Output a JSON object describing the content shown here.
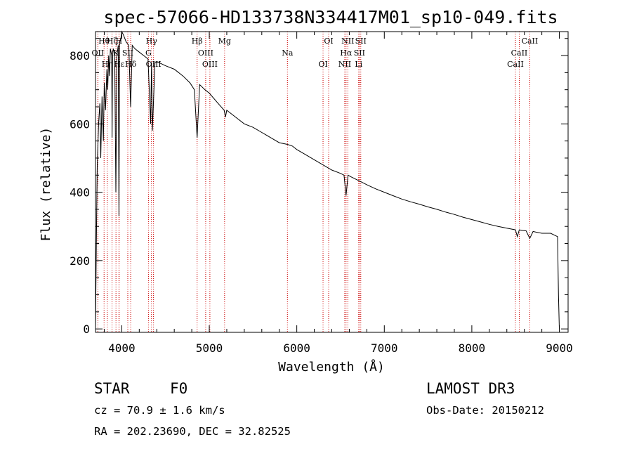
{
  "chart_data": {
    "type": "line",
    "title": "spec-57066-HD133738N334417M01_sp10-049.fits",
    "xlabel": "Wavelength (Å)",
    "ylabel": "Flux (relative)",
    "xlim": [
      3700,
      9100
    ],
    "ylim": [
      -10,
      870
    ],
    "xticks": [
      4000,
      5000,
      6000,
      7000,
      8000,
      9000
    ],
    "yticks": [
      0,
      200,
      400,
      600,
      800
    ],
    "series": [
      {
        "name": "spectrum",
        "x": [
          3700,
          3710,
          3720,
          3735,
          3750,
          3760,
          3775,
          3790,
          3800,
          3815,
          3830,
          3840,
          3850,
          3860,
          3870,
          3885,
          3889,
          3895,
          3905,
          3920,
          3933,
          3945,
          3960,
          3968,
          3975,
          3990,
          4000,
          4020,
          4050,
          4080,
          4101,
          4120,
          4150,
          4200,
          4250,
          4300,
          4330,
          4340,
          4350,
          4380,
          4420,
          4500,
          4600,
          4700,
          4780,
          4830,
          4861,
          4890,
          4950,
          5000,
          5100,
          5170,
          5185,
          5200,
          5300,
          5400,
          5500,
          5600,
          5700,
          5800,
          5893,
          5950,
          6000,
          6100,
          6200,
          6300,
          6400,
          6500,
          6540,
          6563,
          6585,
          6620,
          6700,
          6800,
          6900,
          7000,
          7100,
          7200,
          7300,
          7400,
          7500,
          7600,
          7700,
          7800,
          7900,
          8000,
          8100,
          8200,
          8300,
          8400,
          8498,
          8520,
          8542,
          8580,
          8620,
          8662,
          8700,
          8800,
          8900,
          8980,
          8990,
          9000
        ],
        "values": [
          0,
          250,
          480,
          600,
          660,
          500,
          680,
          550,
          720,
          640,
          760,
          700,
          800,
          740,
          820,
          800,
          560,
          810,
          820,
          790,
          400,
          800,
          830,
          330,
          840,
          850,
          870,
          860,
          840,
          830,
          650,
          830,
          820,
          810,
          800,
          790,
          600,
          780,
          580,
          780,
          780,
          770,
          760,
          740,
          720,
          700,
          560,
          715,
          700,
          690,
          660,
          640,
          620,
          640,
          620,
          600,
          590,
          575,
          560,
          545,
          540,
          535,
          525,
          510,
          495,
          480,
          465,
          455,
          450,
          390,
          450,
          445,
          435,
          422,
          410,
          400,
          390,
          380,
          372,
          365,
          357,
          350,
          342,
          335,
          327,
          320,
          313,
          306,
          300,
          295,
          290,
          270,
          290,
          288,
          287,
          265,
          285,
          280,
          280,
          270,
          100,
          0
        ]
      }
    ],
    "spectral_lines": [
      {
        "label": "Hθ",
        "wavelength": 3798
      },
      {
        "label": "OII",
        "wavelength": 3727
      },
      {
        "label": "Hη",
        "wavelength": 3835
      },
      {
        "label": "Hζ",
        "wavelength": 3889
      },
      {
        "label": "K",
        "wavelength": 3934
      },
      {
        "label": "Hε",
        "wavelength": 3970
      },
      {
        "label": "H",
        "wavelength": 3968
      },
      {
        "label": "SII",
        "wavelength": 4069
      },
      {
        "label": "Hδ",
        "wavelength": 4102
      },
      {
        "label": "Hγ",
        "wavelength": 4340
      },
      {
        "label": "G",
        "wavelength": 4305
      },
      {
        "label": "OIII",
        "wavelength": 4363
      },
      {
        "label": "Hβ",
        "wavelength": 4861
      },
      {
        "label": "OIII",
        "wavelength": 4959
      },
      {
        "label": "OIII",
        "wavelength": 5007
      },
      {
        "label": "Mg",
        "wavelength": 5175
      },
      {
        "label": "Na",
        "wavelength": 5893
      },
      {
        "label": "OI",
        "wavelength": 6300
      },
      {
        "label": "OI",
        "wavelength": 6364
      },
      {
        "label": "Hα",
        "wavelength": 6563
      },
      {
        "label": "NII",
        "wavelength": 6548
      },
      {
        "label": "NII",
        "wavelength": 6583
      },
      {
        "label": "SII",
        "wavelength": 6716
      },
      {
        "label": "Li",
        "wavelength": 6707
      },
      {
        "label": "SII",
        "wavelength": 6731
      },
      {
        "label": "CaII",
        "wavelength": 8542
      },
      {
        "label": "CaII",
        "wavelength": 8498
      },
      {
        "label": "CaII",
        "wavelength": 8662
      }
    ]
  },
  "info": {
    "object_class": "STAR",
    "subclass": "F0",
    "survey": "LAMOST DR3",
    "cz": "cz = 70.9 ± 1.6 km/s",
    "obs_date": "Obs-Date: 20150212",
    "coords": "RA = 202.23690, DEC =  32.82525"
  },
  "colors": {
    "line_marker": "#cc0000",
    "spectrum": "#000000"
  }
}
